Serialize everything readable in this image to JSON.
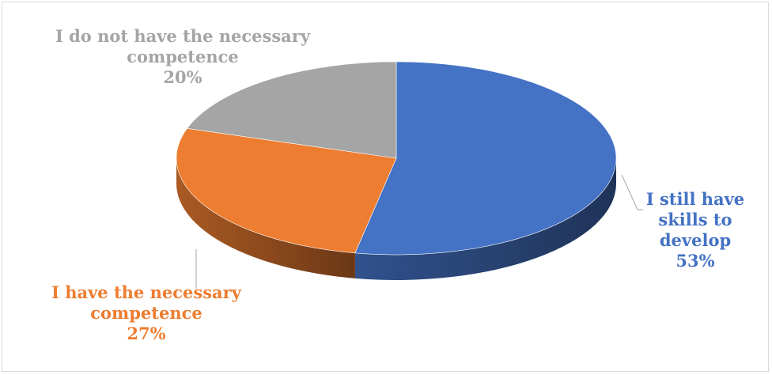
{
  "chart_data": {
    "type": "pie",
    "title": "",
    "categories": [
      "I still have skills to develop",
      "I have the necessary competence",
      "I do not have the necessary competence"
    ],
    "values": [
      53,
      27,
      20
    ],
    "colors": [
      "#4472c4",
      "#ed7d31",
      "#a5a5a5"
    ],
    "labels": [
      {
        "lines": [
          "I still have",
          "skills to",
          "develop",
          "53%"
        ],
        "color": "#4472c4"
      },
      {
        "lines": [
          "I have the necessary",
          "competence",
          "27%"
        ],
        "color": "#ed7d31"
      },
      {
        "lines": [
          "I do not have the necessary",
          "competence",
          "20%"
        ],
        "color": "#a5a5a5"
      }
    ],
    "legend": "none",
    "style": "3d"
  }
}
